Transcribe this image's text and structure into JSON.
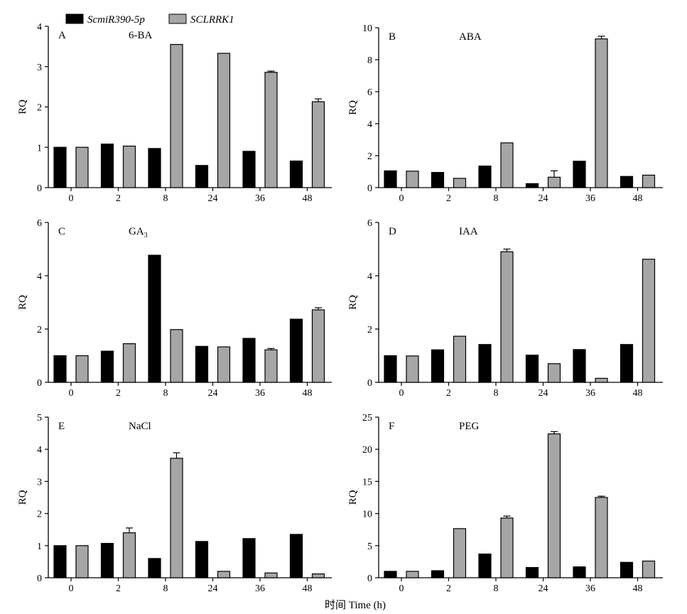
{
  "legend": {
    "series": [
      {
        "name": "ScmiR390-5p",
        "color": "#000000"
      },
      {
        "name": "SCLRRK1",
        "color": "#a6a6a6"
      }
    ]
  },
  "xlabel": "时间 Time (h)",
  "ylabel": "RQ",
  "chart_data": [
    {
      "type": "bar",
      "letter": "A",
      "title": "6-BA",
      "categories": [
        "0",
        "2",
        "8",
        "24",
        "36",
        "48"
      ],
      "ylim": [
        0,
        4
      ],
      "yticks": [
        0,
        1,
        2,
        3,
        4
      ],
      "ylabel": "RQ",
      "xlabel": "",
      "series": [
        {
          "name": "ScmiR390-5p",
          "values": [
            1.0,
            1.08,
            0.97,
            0.55,
            0.9,
            0.66
          ],
          "errors": [
            0,
            0,
            0,
            0,
            0,
            0
          ]
        },
        {
          "name": "SCLRRK1",
          "values": [
            1.0,
            1.03,
            3.55,
            3.33,
            2.86,
            2.13
          ],
          "errors": [
            0,
            0,
            0,
            0,
            0.03,
            0.07
          ]
        }
      ]
    },
    {
      "type": "bar",
      "letter": "B",
      "title": "ABA",
      "categories": [
        "0",
        "2",
        "8",
        "24",
        "36",
        "48"
      ],
      "ylim": [
        0,
        10
      ],
      "yticks": [
        0,
        2,
        4,
        6,
        8,
        10
      ],
      "ylabel": "RQ",
      "xlabel": "",
      "series": [
        {
          "name": "ScmiR390-5p",
          "values": [
            1.05,
            0.95,
            1.35,
            0.25,
            1.65,
            0.7
          ],
          "errors": [
            0,
            0,
            0,
            0,
            0,
            0
          ]
        },
        {
          "name": "SCLRRK1",
          "values": [
            1.03,
            0.58,
            2.8,
            0.65,
            9.3,
            0.78
          ],
          "errors": [
            0,
            0,
            0,
            0.4,
            0.17,
            0
          ]
        }
      ]
    },
    {
      "type": "bar",
      "letter": "C",
      "title": "GA",
      "title_sub": "3",
      "categories": [
        "0",
        "2",
        "8",
        "24",
        "36",
        "48"
      ],
      "ylim": [
        0,
        6
      ],
      "yticks": [
        0,
        2,
        4,
        6
      ],
      "ylabel": "RQ",
      "xlabel": "",
      "series": [
        {
          "name": "ScmiR390-5p",
          "values": [
            1.0,
            1.17,
            4.77,
            1.35,
            1.65,
            2.37
          ],
          "errors": [
            0,
            0,
            0,
            0,
            0,
            0
          ]
        },
        {
          "name": "SCLRRK1",
          "values": [
            1.0,
            1.45,
            1.98,
            1.33,
            1.22,
            2.72
          ],
          "errors": [
            0,
            0,
            0,
            0,
            0.05,
            0.08
          ]
        }
      ]
    },
    {
      "type": "bar",
      "letter": "D",
      "title": "IAA",
      "categories": [
        "0",
        "2",
        "8",
        "24",
        "36",
        "48"
      ],
      "ylim": [
        0,
        6
      ],
      "yticks": [
        0,
        2,
        4,
        6
      ],
      "ylabel": "RQ",
      "xlabel": "",
      "series": [
        {
          "name": "ScmiR390-5p",
          "values": [
            1.0,
            1.22,
            1.42,
            1.02,
            1.23,
            1.42
          ],
          "errors": [
            0,
            0,
            0,
            0,
            0,
            0
          ]
        },
        {
          "name": "SCLRRK1",
          "values": [
            0.99,
            1.73,
            4.9,
            0.7,
            0.15,
            4.62
          ],
          "errors": [
            0,
            0,
            0.1,
            0,
            0,
            0
          ]
        }
      ]
    },
    {
      "type": "bar",
      "letter": "E",
      "title": "NaCl",
      "categories": [
        "0",
        "2",
        "8",
        "24",
        "36",
        "48"
      ],
      "ylim": [
        0,
        5
      ],
      "yticks": [
        0,
        1,
        2,
        3,
        4,
        5
      ],
      "ylabel": "RQ",
      "xlabel": "",
      "series": [
        {
          "name": "ScmiR390-5p",
          "values": [
            1.0,
            1.07,
            0.6,
            1.13,
            1.22,
            1.35
          ],
          "errors": [
            0,
            0,
            0,
            0,
            0,
            0
          ]
        },
        {
          "name": "SCLRRK1",
          "values": [
            1.0,
            1.4,
            3.72,
            0.2,
            0.15,
            0.12
          ],
          "errors": [
            0,
            0.15,
            0.17,
            0,
            0,
            0
          ]
        }
      ]
    },
    {
      "type": "bar",
      "letter": "F",
      "title": "PEG",
      "categories": [
        "0",
        "2",
        "8",
        "24",
        "36",
        "48"
      ],
      "ylim": [
        0,
        25
      ],
      "yticks": [
        0,
        5,
        10,
        15,
        20,
        25
      ],
      "ylabel": "RQ",
      "xlabel": "",
      "series": [
        {
          "name": "ScmiR390-5p",
          "values": [
            1.0,
            1.1,
            3.7,
            1.6,
            1.7,
            2.4
          ],
          "errors": [
            0,
            0,
            0,
            0,
            0,
            0
          ]
        },
        {
          "name": "SCLRRK1",
          "values": [
            1.0,
            7.65,
            9.3,
            22.4,
            12.5,
            2.6
          ],
          "errors": [
            0,
            0,
            0.3,
            0.35,
            0.2,
            0
          ]
        }
      ]
    }
  ]
}
